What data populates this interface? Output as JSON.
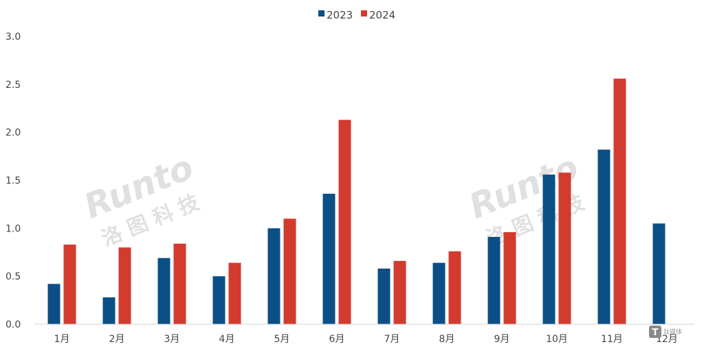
{
  "chart_data": {
    "type": "bar",
    "title": "",
    "xlabel": "",
    "ylabel": "",
    "ylim": [
      0,
      3.0
    ],
    "yticks": [
      "0.0",
      "0.5",
      "1.0",
      "1.5",
      "2.0",
      "2.5",
      "3.0"
    ],
    "grid": false,
    "legend_position": "top-center",
    "categories": [
      "1月",
      "2月",
      "3月",
      "4月",
      "5月",
      "6月",
      "7月",
      "8月",
      "9月",
      "10月",
      "11月",
      "12月"
    ],
    "series": [
      {
        "name": "2023",
        "color": "#0b4f86",
        "values": [
          0.42,
          0.28,
          0.69,
          0.5,
          1.0,
          1.36,
          0.58,
          0.64,
          0.91,
          1.56,
          1.82,
          1.05
        ]
      },
      {
        "name": "2024",
        "color": "#d23b2e",
        "values": [
          0.83,
          0.8,
          0.84,
          0.64,
          1.1,
          2.13,
          0.66,
          0.76,
          0.96,
          1.58,
          2.56,
          null
        ]
      }
    ]
  },
  "watermark": {
    "latin": "Runto",
    "cjk": "洛图科技"
  },
  "corner_logo": {
    "icon": "tmt-logo-icon",
    "text": "钛媒体"
  }
}
